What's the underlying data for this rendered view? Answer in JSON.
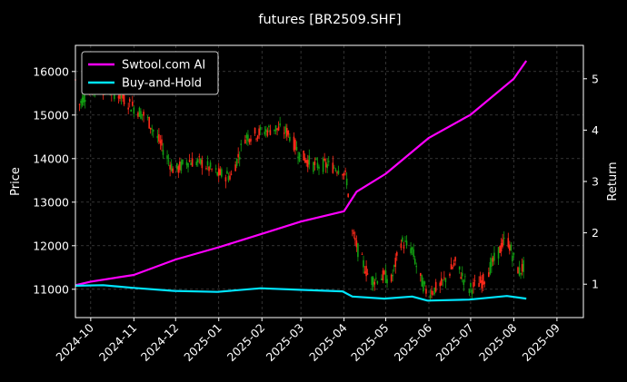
{
  "chart_data": {
    "type": "line",
    "title": "futures [BR2509.SHF]",
    "xlabel": "",
    "ylabel_left": "Price",
    "ylabel_right": "Return",
    "grid": true,
    "legend_position": "top-left",
    "x_range": [
      "2024-09-20",
      "2025-09-20"
    ],
    "x_ticks": [
      "2024-10",
      "2024-11",
      "2024-12",
      "2025-01",
      "2025-02",
      "2025-03",
      "2025-04",
      "2025-05",
      "2025-06",
      "2025-07",
      "2025-08",
      "2025-09"
    ],
    "y_left_range": [
      10350,
      16600
    ],
    "y_left_ticks": [
      11000,
      12000,
      13000,
      14000,
      15000,
      16000
    ],
    "y_right_range": [
      0.35,
      5.65
    ],
    "y_right_ticks": [
      1,
      2,
      3,
      4,
      5
    ],
    "colors": {
      "up": "#ff2a1a",
      "down": "#12a012",
      "ai": "#ff00ff",
      "bh": "#00e5ff",
      "grid": "#555555",
      "axes": "#ffffff"
    },
    "price_keypoints": [
      {
        "x": "2024-09-20",
        "y": 15800
      },
      {
        "x": "2024-09-23",
        "y": 15250
      },
      {
        "x": "2024-09-30",
        "y": 15600
      },
      {
        "x": "2024-10-10",
        "y": 15600
      },
      {
        "x": "2024-10-20",
        "y": 15500
      },
      {
        "x": "2024-10-31",
        "y": 15200
      },
      {
        "x": "2024-11-10",
        "y": 14950
      },
      {
        "x": "2024-11-20",
        "y": 14350
      },
      {
        "x": "2024-11-30",
        "y": 13700
      },
      {
        "x": "2024-12-10",
        "y": 13950
      },
      {
        "x": "2024-12-20",
        "y": 13900
      },
      {
        "x": "2024-12-31",
        "y": 13650
      },
      {
        "x": "2025-01-10",
        "y": 13600
      },
      {
        "x": "2025-01-20",
        "y": 14500
      },
      {
        "x": "2025-01-31",
        "y": 14600
      },
      {
        "x": "2025-02-10",
        "y": 14700
      },
      {
        "x": "2025-02-20",
        "y": 14600
      },
      {
        "x": "2025-02-28",
        "y": 14100
      },
      {
        "x": "2025-03-10",
        "y": 13850
      },
      {
        "x": "2025-03-20",
        "y": 13850
      },
      {
        "x": "2025-03-31",
        "y": 13750
      },
      {
        "x": "2025-04-03",
        "y": 13500
      },
      {
        "x": "2025-04-07",
        "y": 12300
      },
      {
        "x": "2025-04-12",
        "y": 11800
      },
      {
        "x": "2025-04-20",
        "y": 11200
      },
      {
        "x": "2025-04-30",
        "y": 11300
      },
      {
        "x": "2025-05-05",
        "y": 11200
      },
      {
        "x": "2025-05-12",
        "y": 12100
      },
      {
        "x": "2025-05-20",
        "y": 11900
      },
      {
        "x": "2025-05-25",
        "y": 11300
      },
      {
        "x": "2025-05-31",
        "y": 10900
      },
      {
        "x": "2025-06-10",
        "y": 11100
      },
      {
        "x": "2025-06-20",
        "y": 11600
      },
      {
        "x": "2025-06-30",
        "y": 11000
      },
      {
        "x": "2025-07-10",
        "y": 11200
      },
      {
        "x": "2025-07-20",
        "y": 11800
      },
      {
        "x": "2025-07-27",
        "y": 12200
      },
      {
        "x": "2025-08-01",
        "y": 11700
      },
      {
        "x": "2025-08-05",
        "y": 11400
      },
      {
        "x": "2025-08-10",
        "y": 11600
      }
    ],
    "series": [
      {
        "name": "Swtool.com AI",
        "color": "#ff00ff",
        "axis": "right",
        "points": [
          {
            "x": "2024-09-20",
            "y": 0.98
          },
          {
            "x": "2024-10-01",
            "y": 1.05
          },
          {
            "x": "2024-11-01",
            "y": 1.18
          },
          {
            "x": "2024-12-01",
            "y": 1.48
          },
          {
            "x": "2025-01-01",
            "y": 1.72
          },
          {
            "x": "2025-02-01",
            "y": 1.98
          },
          {
            "x": "2025-03-01",
            "y": 2.22
          },
          {
            "x": "2025-04-01",
            "y": 2.42
          },
          {
            "x": "2025-04-10",
            "y": 2.8
          },
          {
            "x": "2025-05-01",
            "y": 3.15
          },
          {
            "x": "2025-06-01",
            "y": 3.85
          },
          {
            "x": "2025-07-01",
            "y": 4.3
          },
          {
            "x": "2025-08-01",
            "y": 5.0
          },
          {
            "x": "2025-08-10",
            "y": 5.35
          }
        ]
      },
      {
        "name": "Buy-and-Hold",
        "color": "#00e5ff",
        "axis": "right",
        "points": [
          {
            "x": "2024-09-20",
            "y": 0.97
          },
          {
            "x": "2024-10-10",
            "y": 0.98
          },
          {
            "x": "2024-10-31",
            "y": 0.93
          },
          {
            "x": "2024-11-30",
            "y": 0.87
          },
          {
            "x": "2024-12-31",
            "y": 0.85
          },
          {
            "x": "2025-01-31",
            "y": 0.92
          },
          {
            "x": "2025-02-28",
            "y": 0.89
          },
          {
            "x": "2025-03-31",
            "y": 0.86
          },
          {
            "x": "2025-04-07",
            "y": 0.76
          },
          {
            "x": "2025-04-30",
            "y": 0.72
          },
          {
            "x": "2025-05-20",
            "y": 0.76
          },
          {
            "x": "2025-05-31",
            "y": 0.68
          },
          {
            "x": "2025-06-30",
            "y": 0.7
          },
          {
            "x": "2025-07-27",
            "y": 0.77
          },
          {
            "x": "2025-08-10",
            "y": 0.72
          }
        ]
      }
    ]
  }
}
